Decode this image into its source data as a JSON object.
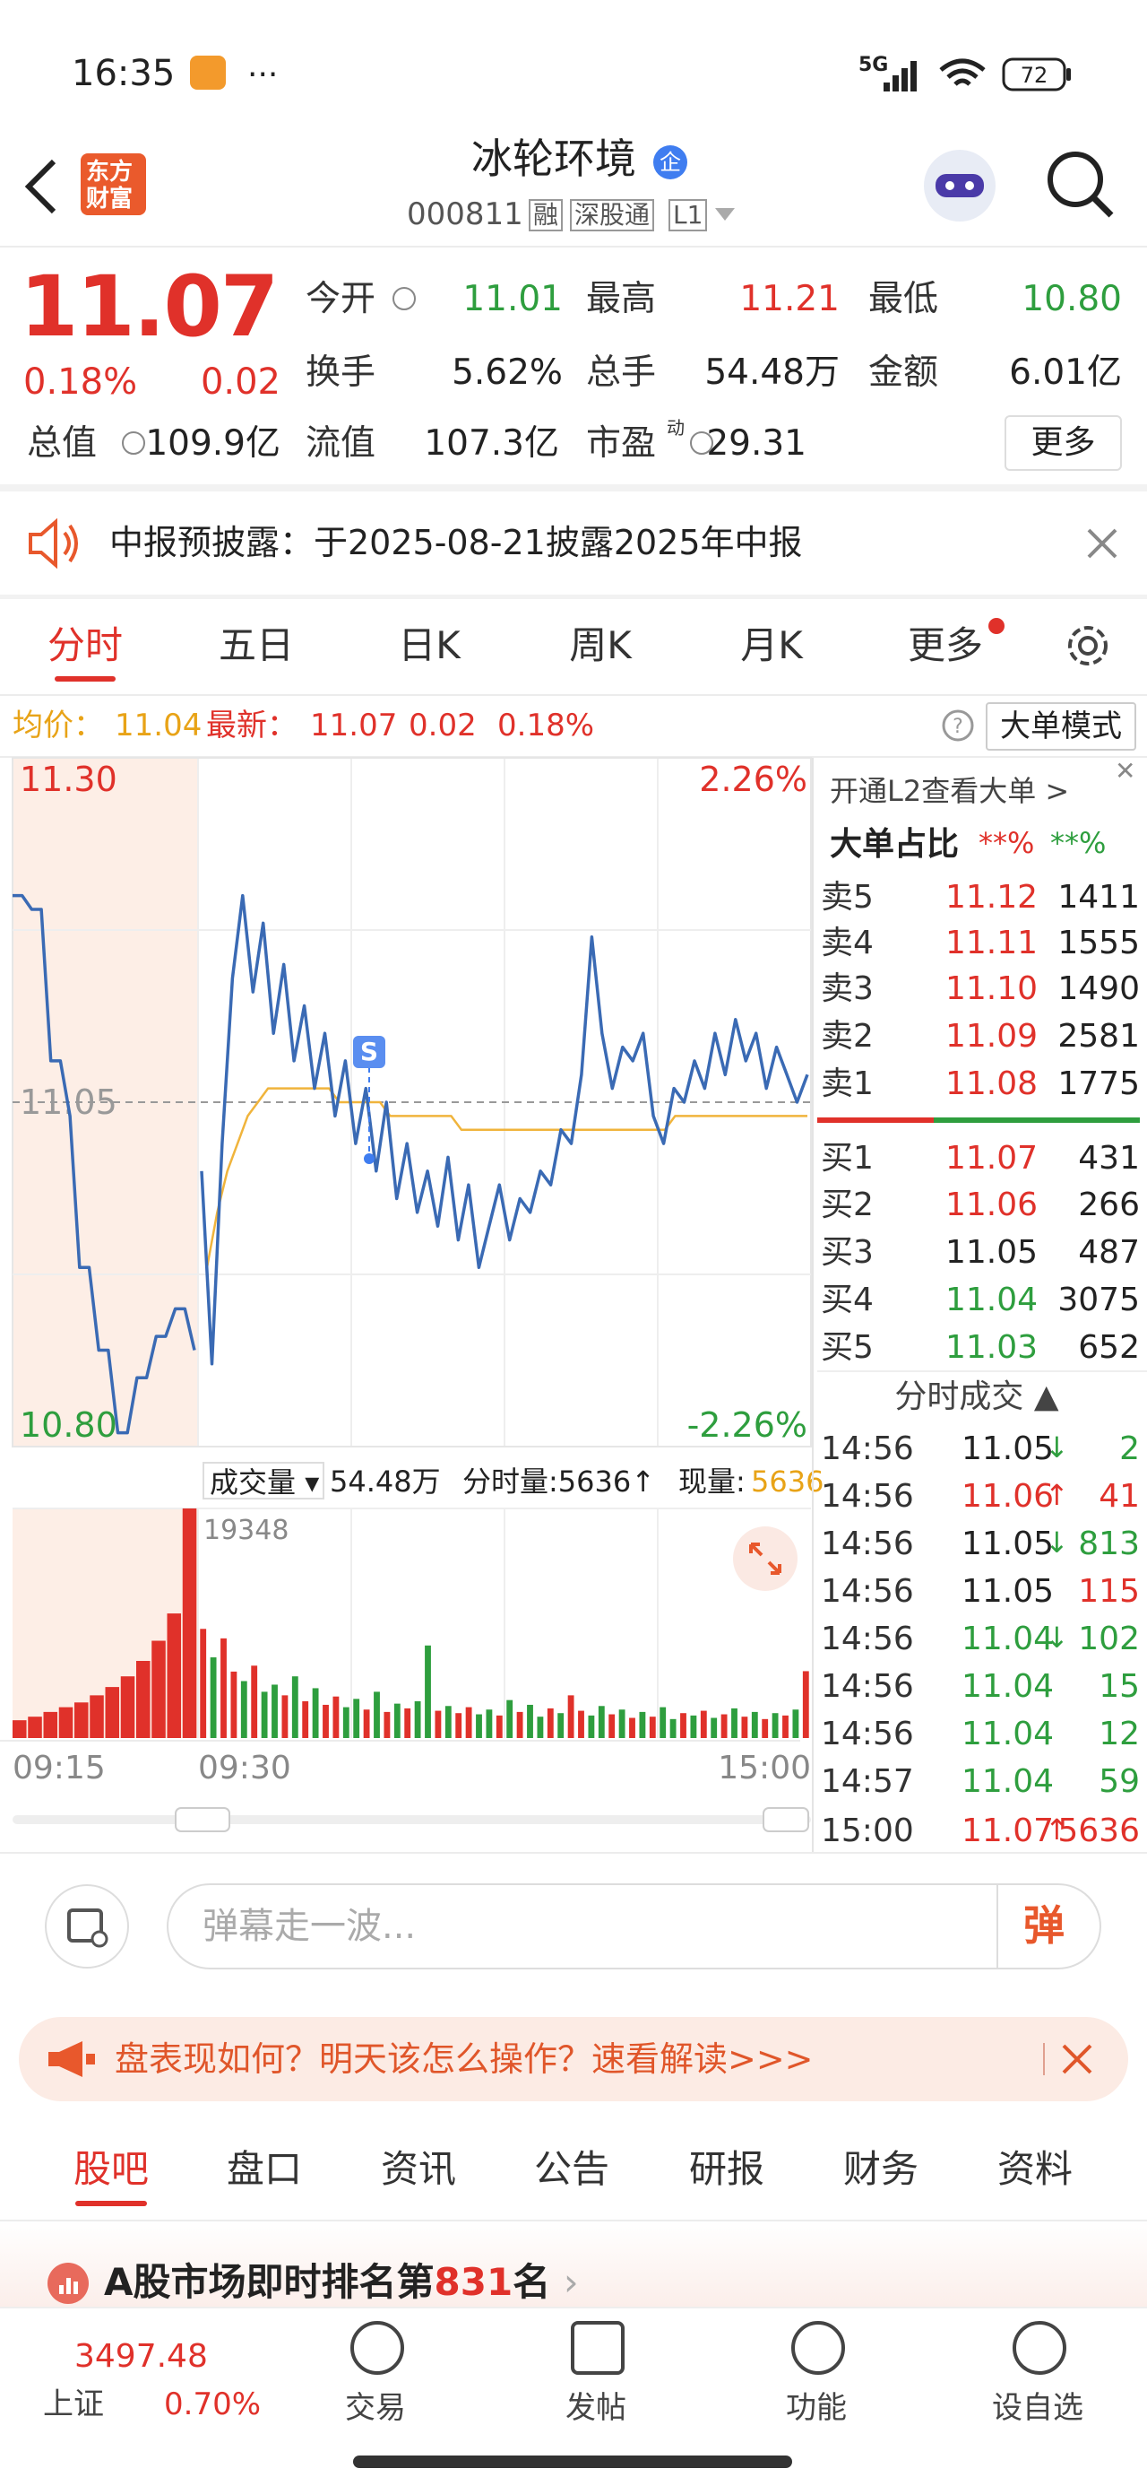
{
  "status_bar": {
    "time": "16:35",
    "network": "5G",
    "battery": "72"
  },
  "header": {
    "logo": [
      "东方",
      "财富"
    ],
    "title": "冰轮环境",
    "badge": "企",
    "code": "000811",
    "tags": [
      "融",
      "深股通",
      "L1"
    ]
  },
  "quote": {
    "price": "11.07",
    "change_pct": "0.18%",
    "change": "0.02",
    "color": "#e0312a",
    "fields": [
      {
        "label": "今开",
        "value": "11.01",
        "color": "#2e9e3e"
      },
      {
        "label": "最高",
        "value": "11.21",
        "color": "#e0312a"
      },
      {
        "label": "最低",
        "value": "10.80",
        "color": "#2e9e3e"
      },
      {
        "label": "换手",
        "value": "5.62%",
        "color": "#222222"
      },
      {
        "label": "总手",
        "value": "54.48万",
        "color": "#222222"
      },
      {
        "label": "金额",
        "value": "6.01亿",
        "color": "#222222"
      },
      {
        "label": "总值",
        "value": "109.9亿",
        "color": "#222222"
      },
      {
        "label": "流值",
        "value": "107.3亿",
        "color": "#222222"
      },
      {
        "label": "市盈",
        "sup": "动",
        "value": "29.31",
        "color": "#222222"
      }
    ],
    "more": "更多"
  },
  "notice": "中报预披露：于2025-08-21披露2025年中报",
  "tabs": {
    "items": [
      "分时",
      "五日",
      "日K",
      "周K",
      "月K",
      "更多"
    ],
    "active": 0
  },
  "info_bar": {
    "avg_label": "均价：",
    "avg": "11.04",
    "latest_label": "最新：",
    "latest": "11.07",
    "change": "0.02",
    "change_pct": "0.18%",
    "mode_button": "大单模式"
  },
  "chart_data": [
    {
      "type": "line",
      "ylim": [
        10.8,
        11.3
      ],
      "yticks": [
        {
          "value": 11.3,
          "label": "11.30"
        },
        11.05,
        {
          "value": 10.8,
          "label": "10.80"
        }
      ],
      "ytick_colors": [
        "#e0312a",
        "#999999",
        "#2e9e3e"
      ],
      "y2lim": [
        -2.26,
        2.26
      ],
      "y2ticks": [
        {
          "value": 2.26,
          "label": "2.26%"
        },
        {
          "value": -2.26,
          "label": "-2.26%"
        }
      ],
      "y2tick_colors": [
        "#e0312a",
        "#2e9e3e"
      ],
      "annotation": "S",
      "series": [
        {
          "color": "#3a6ab4",
          "values": [
            11.2,
            11.2,
            11.19,
            11.19,
            11.08,
            11.08,
            11.04,
            10.93,
            10.93,
            10.87,
            10.87,
            10.81,
            10.81,
            10.85,
            10.85,
            10.88,
            10.88,
            10.9,
            10.9,
            10.87
          ]
        },
        {
          "color": "#3a6ab4",
          "values": [
            11.0,
            10.86,
            11.02,
            11.14,
            11.2,
            11.13,
            11.18,
            11.1,
            11.15,
            11.08,
            11.12,
            11.06,
            11.1,
            11.04,
            11.08,
            11.02,
            11.06,
            11.0,
            11.05,
            10.98,
            11.02,
            10.97,
            11.0,
            10.96,
            11.01,
            10.95,
            10.99,
            10.93,
            10.96,
            10.99,
            10.95,
            10.98,
            10.97,
            11.0,
            10.99,
            11.03,
            11.02,
            11.07,
            11.17,
            11.1,
            11.06,
            11.09,
            11.08,
            11.1,
            11.04,
            11.02,
            11.06,
            11.05,
            11.08,
            11.06,
            11.1,
            11.07,
            11.11,
            11.08,
            11.1,
            11.06,
            11.09,
            11.07,
            11.05,
            11.07
          ]
        },
        {
          "color": "#f0b43c",
          "values": [
            10.93,
            10.97,
            11.0,
            11.02,
            11.04,
            11.05,
            11.06,
            11.06,
            11.06,
            11.06,
            11.06,
            11.06,
            11.06,
            11.05,
            11.05,
            11.05,
            11.05,
            11.05,
            11.04,
            11.04,
            11.04,
            11.04,
            11.04,
            11.04,
            11.04,
            11.03,
            11.03,
            11.03,
            11.03,
            11.03,
            11.03,
            11.03,
            11.03,
            11.03,
            11.03,
            11.03,
            11.03,
            11.03,
            11.03,
            11.03,
            11.03,
            11.03,
            11.03,
            11.03,
            11.03,
            11.03,
            11.04,
            11.04,
            11.04,
            11.04,
            11.04,
            11.04,
            11.04,
            11.04,
            11.04,
            11.04,
            11.04,
            11.04,
            11.04,
            11.04
          ]
        }
      ]
    },
    {
      "type": "bar",
      "ylim": [
        0,
        19348
      ],
      "yticks": [
        19348
      ],
      "premarket": {
        "color": "#e0312a",
        "values": [
          1500,
          1800,
          2200,
          2600,
          3000,
          3600,
          4300,
          5200,
          6500,
          8200,
          10500,
          19348
        ]
      },
      "values": [
        9200,
        6800,
        8400,
        5600,
        4800,
        6100,
        3900,
        4500,
        3600,
        5200,
        3100,
        4200,
        2800,
        3500,
        2600,
        3300,
        2400,
        3900,
        2200,
        2900,
        2500,
        3100,
        7800,
        2300,
        2700,
        2100,
        2600,
        2000,
        2400,
        1900,
        3200,
        2200,
        2800,
        1800,
        2500,
        2100,
        3600,
        2300,
        1900,
        2700,
        2000,
        2400,
        1700,
        2200,
        1800,
        2600,
        1600,
        2100,
        1900,
        2300,
        1700,
        2000,
        2500,
        1800,
        2200,
        1600,
        2100,
        1900,
        2400,
        5636
      ],
      "colors": [
        "#e0312a",
        "#2e9e3e",
        "#e0312a",
        "#e0312a",
        "#2e9e3e",
        "#e0312a",
        "#2e9e3e",
        "#2e9e3e",
        "#e0312a",
        "#2e9e3e",
        "#e0312a",
        "#2e9e3e",
        "#e0312a",
        "#e0312a",
        "#2e9e3e",
        "#2e9e3e",
        "#e0312a",
        "#2e9e3e",
        "#e0312a",
        "#2e9e3e",
        "#e0312a",
        "#2e9e3e",
        "#2e9e3e",
        "#e0312a",
        "#2e9e3e",
        "#e0312a",
        "#e0312a",
        "#2e9e3e",
        "#2e9e3e",
        "#e0312a",
        "#2e9e3e",
        "#e0312a",
        "#2e9e3e",
        "#2e9e3e",
        "#e0312a",
        "#2e9e3e",
        "#e0312a",
        "#e0312a",
        "#2e9e3e",
        "#2e9e3e",
        "#e0312a",
        "#2e9e3e",
        "#e0312a",
        "#2e9e3e",
        "#e0312a",
        "#2e9e3e",
        "#2e9e3e",
        "#e0312a",
        "#2e9e3e",
        "#e0312a",
        "#2e9e3e",
        "#e0312a",
        "#2e9e3e",
        "#e0312a",
        "#2e9e3e",
        "#e0312a",
        "#2e9e3e",
        "#e0312a",
        "#2e9e3e",
        "#e0312a"
      ]
    }
  ],
  "volume_header": {
    "label": "成交量",
    "total": "54.48万",
    "minute_volume": "分时量:5636↑",
    "current_label": "现量:",
    "current": "5636"
  },
  "time_labels": [
    "09:15",
    "09:30",
    "15:00"
  ],
  "order_panel": {
    "promo": "开通L2查看大单 >",
    "ratio_label": "大单占比",
    "ratio_buy": "**%",
    "ratio_sell": "**%",
    "asks": [
      {
        "label": "卖5",
        "price": "11.12",
        "volume": "1411",
        "color": "#e0312a"
      },
      {
        "label": "卖4",
        "price": "11.11",
        "volume": "1555",
        "color": "#e0312a"
      },
      {
        "label": "卖3",
        "price": "11.10",
        "volume": "1490",
        "color": "#e0312a"
      },
      {
        "label": "卖2",
        "price": "11.09",
        "volume": "2581",
        "color": "#e0312a"
      },
      {
        "label": "卖1",
        "price": "11.08",
        "volume": "1775",
        "color": "#e0312a"
      }
    ],
    "bids": [
      {
        "label": "买1",
        "price": "11.07",
        "volume": "431",
        "color": "#e0312a"
      },
      {
        "label": "买2",
        "price": "11.06",
        "volume": "266",
        "color": "#e0312a"
      },
      {
        "label": "买3",
        "price": "11.05",
        "volume": "487",
        "color": "#222222"
      },
      {
        "label": "买4",
        "price": "11.04",
        "volume": "3075",
        "color": "#2e9e3e"
      },
      {
        "label": "买5",
        "price": "11.03",
        "volume": "652",
        "color": "#2e9e3e"
      }
    ],
    "trades_title": "分时成交 ▲",
    "trades": [
      {
        "time": "14:56",
        "price": "11.05",
        "arrow": "↓",
        "volume": "2",
        "price_color": "#222222",
        "arrow_color": "#2e9e3e",
        "volume_color": "#2e9e3e"
      },
      {
        "time": "14:56",
        "price": "11.06",
        "arrow": "↑",
        "volume": "41",
        "price_color": "#e0312a",
        "arrow_color": "#e0312a",
        "volume_color": "#e0312a"
      },
      {
        "time": "14:56",
        "price": "11.05",
        "arrow": "↓",
        "volume": "813",
        "price_color": "#222222",
        "arrow_color": "#2e9e3e",
        "volume_color": "#2e9e3e"
      },
      {
        "time": "14:56",
        "price": "11.05",
        "volume": "115",
        "price_color": "#222222",
        "volume_color": "#e0312a"
      },
      {
        "time": "14:56",
        "price": "11.04",
        "arrow": "↓",
        "volume": "102",
        "price_color": "#2e9e3e",
        "arrow_color": "#2e9e3e",
        "volume_color": "#2e9e3e"
      },
      {
        "time": "14:56",
        "price": "11.04",
        "volume": "15",
        "price_color": "#2e9e3e",
        "volume_color": "#2e9e3e"
      },
      {
        "time": "14:56",
        "price": "11.04",
        "volume": "12",
        "price_color": "#2e9e3e",
        "volume_color": "#2e9e3e"
      },
      {
        "time": "14:57",
        "price": "11.04",
        "volume": "59",
        "price_color": "#2e9e3e",
        "volume_color": "#2e9e3e"
      },
      {
        "time": "15:00",
        "price": "11.07",
        "arrow": "↑",
        "volume": "5636",
        "price_color": "#e0312a",
        "arrow_color": "#e0312a",
        "volume_color": "#e0312a"
      }
    ]
  },
  "comment_bar": {
    "placeholder": "弹幕走一波...",
    "button": "弹"
  },
  "banner": "盘表现如何？明天该怎么操作？速看解读>>>",
  "bottom_tabs": {
    "items": [
      "股吧",
      "盘口",
      "资讯",
      "公告",
      "研报",
      "财务",
      "资料"
    ],
    "active": 0
  },
  "ranking": {
    "prefix": "A股市场即时排名第",
    "rank": "831",
    "suffix": "名"
  },
  "bottom_nav": {
    "index_value": "3497.48",
    "index_name": "上证",
    "index_change": "0.70%",
    "items": [
      "交易",
      "发帖",
      "功能",
      "设自选"
    ]
  }
}
